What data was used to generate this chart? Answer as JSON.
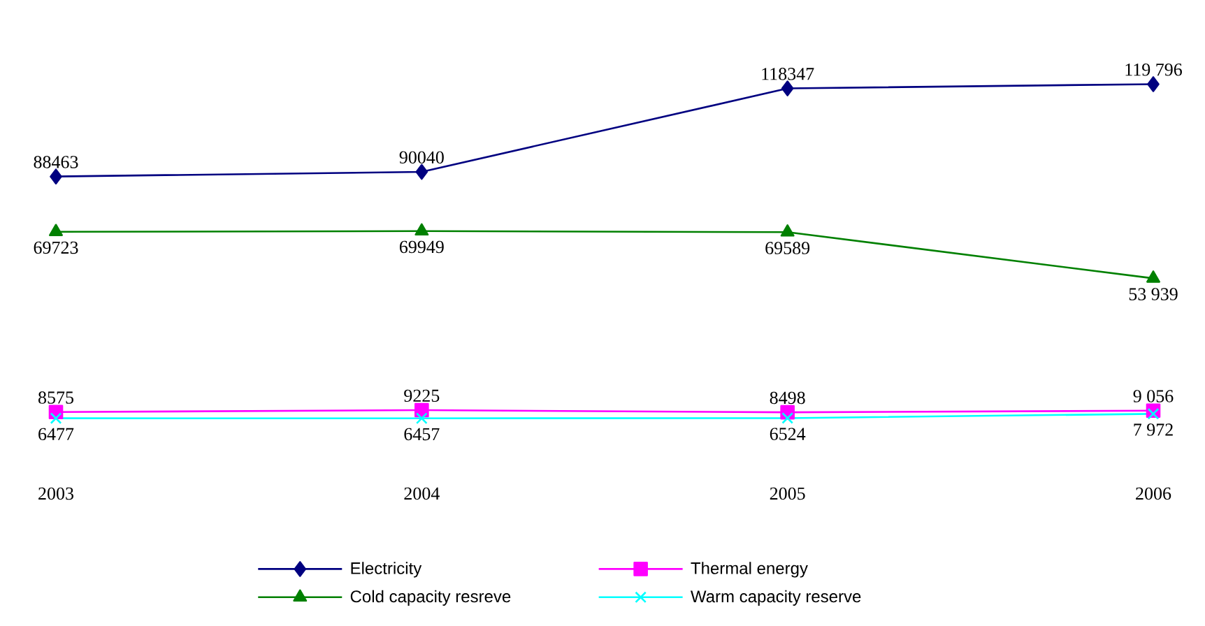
{
  "chart_data": {
    "type": "line",
    "categories": [
      "2003",
      "2004",
      "2005",
      "2006"
    ],
    "legend": "bottom",
    "line_style": "solid",
    "series": [
      {
        "name": "Electricity",
        "color": "#000080",
        "marker": "diamond",
        "values": [
          88463,
          90040,
          118347,
          119796
        ],
        "value_labels": [
          "88463",
          "90040",
          "118347",
          "119 796"
        ]
      },
      {
        "name": "Thermal energy",
        "color": "#ff00ff",
        "marker": "square",
        "values": [
          8575,
          9225,
          8498,
          9056
        ],
        "value_labels": [
          "8575",
          "9225",
          "8498",
          "9 056"
        ]
      },
      {
        "name": "Cold capacity resreve",
        "color": "#008000",
        "marker": "triangle",
        "values": [
          69723,
          69949,
          69589,
          53939
        ],
        "value_labels": [
          "69723",
          "69949",
          "69589",
          "53 939"
        ]
      },
      {
        "name": "Warm capacity reserve",
        "color": "#00ffff",
        "marker": "cross",
        "values": [
          6477,
          6457,
          6524,
          7972
        ],
        "value_labels": [
          "6477",
          "6457",
          "6524",
          "7 972"
        ]
      }
    ]
  }
}
